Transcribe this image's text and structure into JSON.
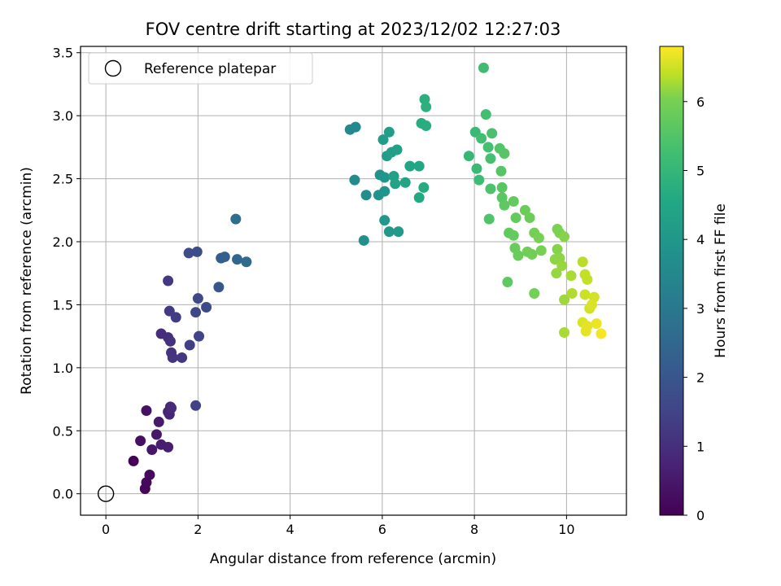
{
  "chart_data": {
    "type": "scatter",
    "title": "FOV centre drift starting at 2023/12/02 12:27:03",
    "xlabel": "Angular distance from reference (arcmin)",
    "ylabel": "Rotation from reference (arcmin)",
    "xlim": [
      -0.55,
      11.3
    ],
    "ylim": [
      -0.17,
      3.55
    ],
    "xticks": [
      0,
      2,
      4,
      6,
      8,
      10
    ],
    "yticks": [
      0.0,
      0.5,
      1.0,
      1.5,
      2.0,
      2.5,
      3.0,
      3.5
    ],
    "grid": true,
    "legend": {
      "position": "upper-left",
      "entries": [
        "Reference platepar"
      ]
    },
    "reference_point": {
      "x": 0.0,
      "y": 0.0
    },
    "colorbar": {
      "label": "Hours from first FF file",
      "colormap": "viridis",
      "range": [
        0,
        6.8
      ],
      "ticks": [
        0,
        1,
        2,
        3,
        4,
        5,
        6
      ]
    },
    "points": [
      {
        "x": 0.6,
        "y": 0.26,
        "c": 0.05
      },
      {
        "x": 0.85,
        "y": 0.04,
        "c": 0.1
      },
      {
        "x": 0.88,
        "y": 0.09,
        "c": 0.15
      },
      {
        "x": 0.95,
        "y": 0.15,
        "c": 0.2
      },
      {
        "x": 0.75,
        "y": 0.42,
        "c": 0.3
      },
      {
        "x": 0.88,
        "y": 0.66,
        "c": 0.35
      },
      {
        "x": 1.0,
        "y": 0.35,
        "c": 0.45
      },
      {
        "x": 1.1,
        "y": 0.47,
        "c": 0.5
      },
      {
        "x": 1.15,
        "y": 0.57,
        "c": 0.55
      },
      {
        "x": 1.2,
        "y": 0.39,
        "c": 0.6
      },
      {
        "x": 1.35,
        "y": 0.37,
        "c": 0.65
      },
      {
        "x": 1.35,
        "y": 0.65,
        "c": 0.75
      },
      {
        "x": 1.38,
        "y": 0.63,
        "c": 0.8
      },
      {
        "x": 1.4,
        "y": 0.69,
        "c": 0.85
      },
      {
        "x": 1.42,
        "y": 0.68,
        "c": 0.9
      },
      {
        "x": 1.2,
        "y": 1.27,
        "c": 0.95
      },
      {
        "x": 1.35,
        "y": 1.24,
        "c": 1.0
      },
      {
        "x": 1.4,
        "y": 1.21,
        "c": 1.05
      },
      {
        "x": 1.42,
        "y": 1.12,
        "c": 1.1
      },
      {
        "x": 1.45,
        "y": 1.08,
        "c": 1.15
      },
      {
        "x": 1.65,
        "y": 1.08,
        "c": 1.2
      },
      {
        "x": 1.35,
        "y": 1.69,
        "c": 1.25
      },
      {
        "x": 1.38,
        "y": 1.45,
        "c": 1.3
      },
      {
        "x": 1.52,
        "y": 1.4,
        "c": 1.35
      },
      {
        "x": 1.82,
        "y": 1.18,
        "c": 1.4
      },
      {
        "x": 1.95,
        "y": 0.7,
        "c": 1.45
      },
      {
        "x": 2.02,
        "y": 1.25,
        "c": 1.5
      },
      {
        "x": 1.95,
        "y": 1.44,
        "c": 1.6
      },
      {
        "x": 2.0,
        "y": 1.55,
        "c": 1.65
      },
      {
        "x": 2.18,
        "y": 1.48,
        "c": 1.7
      },
      {
        "x": 1.8,
        "y": 1.91,
        "c": 1.75
      },
      {
        "x": 1.98,
        "y": 1.92,
        "c": 1.8
      },
      {
        "x": 2.45,
        "y": 1.64,
        "c": 2.0
      },
      {
        "x": 2.5,
        "y": 1.87,
        "c": 2.2
      },
      {
        "x": 2.58,
        "y": 1.88,
        "c": 2.3
      },
      {
        "x": 2.85,
        "y": 1.86,
        "c": 2.5
      },
      {
        "x": 3.05,
        "y": 1.84,
        "c": 2.6
      },
      {
        "x": 2.82,
        "y": 2.18,
        "c": 2.7
      },
      {
        "x": 5.3,
        "y": 2.89,
        "c": 3.5
      },
      {
        "x": 5.42,
        "y": 2.91,
        "c": 3.55
      },
      {
        "x": 5.4,
        "y": 2.49,
        "c": 3.6
      },
      {
        "x": 5.65,
        "y": 2.37,
        "c": 3.7
      },
      {
        "x": 5.6,
        "y": 2.01,
        "c": 3.75
      },
      {
        "x": 5.92,
        "y": 2.37,
        "c": 3.8
      },
      {
        "x": 5.95,
        "y": 2.53,
        "c": 3.85
      },
      {
        "x": 6.05,
        "y": 2.4,
        "c": 3.9
      },
      {
        "x": 6.05,
        "y": 2.51,
        "c": 3.95
      },
      {
        "x": 6.05,
        "y": 2.17,
        "c": 4.0
      },
      {
        "x": 6.15,
        "y": 2.08,
        "c": 4.05
      },
      {
        "x": 6.35,
        "y": 2.08,
        "c": 4.1
      },
      {
        "x": 6.02,
        "y": 2.81,
        "c": 4.15
      },
      {
        "x": 6.15,
        "y": 2.87,
        "c": 4.2
      },
      {
        "x": 6.1,
        "y": 2.68,
        "c": 4.2
      },
      {
        "x": 6.2,
        "y": 2.71,
        "c": 4.25
      },
      {
        "x": 6.32,
        "y": 2.73,
        "c": 4.3
      },
      {
        "x": 6.25,
        "y": 2.52,
        "c": 4.3
      },
      {
        "x": 6.28,
        "y": 2.46,
        "c": 4.35
      },
      {
        "x": 6.5,
        "y": 2.47,
        "c": 4.4
      },
      {
        "x": 6.6,
        "y": 2.6,
        "c": 4.45
      },
      {
        "x": 6.8,
        "y": 2.6,
        "c": 4.5
      },
      {
        "x": 6.8,
        "y": 2.35,
        "c": 4.55
      },
      {
        "x": 6.9,
        "y": 2.43,
        "c": 4.6
      },
      {
        "x": 6.85,
        "y": 2.94,
        "c": 4.65
      },
      {
        "x": 6.95,
        "y": 2.92,
        "c": 4.7
      },
      {
        "x": 6.92,
        "y": 3.13,
        "c": 4.75
      },
      {
        "x": 6.95,
        "y": 3.07,
        "c": 4.8
      },
      {
        "x": 7.88,
        "y": 2.68,
        "c": 5.0
      },
      {
        "x": 8.02,
        "y": 2.87,
        "c": 5.05
      },
      {
        "x": 8.05,
        "y": 2.58,
        "c": 5.1
      },
      {
        "x": 8.1,
        "y": 2.49,
        "c": 5.15
      },
      {
        "x": 8.2,
        "y": 3.38,
        "c": 5.2
      },
      {
        "x": 8.25,
        "y": 3.01,
        "c": 5.25
      },
      {
        "x": 8.15,
        "y": 2.82,
        "c": 5.25
      },
      {
        "x": 8.3,
        "y": 2.75,
        "c": 5.3
      },
      {
        "x": 8.35,
        "y": 2.66,
        "c": 5.3
      },
      {
        "x": 8.38,
        "y": 2.86,
        "c": 5.35
      },
      {
        "x": 8.35,
        "y": 2.42,
        "c": 5.4
      },
      {
        "x": 8.32,
        "y": 2.18,
        "c": 5.45
      },
      {
        "x": 8.55,
        "y": 2.74,
        "c": 5.5
      },
      {
        "x": 8.65,
        "y": 2.7,
        "c": 5.55
      },
      {
        "x": 8.58,
        "y": 2.56,
        "c": 5.55
      },
      {
        "x": 8.6,
        "y": 2.43,
        "c": 5.6
      },
      {
        "x": 8.6,
        "y": 2.35,
        "c": 5.6
      },
      {
        "x": 8.65,
        "y": 2.29,
        "c": 5.65
      },
      {
        "x": 8.72,
        "y": 1.68,
        "c": 5.65
      },
      {
        "x": 8.75,
        "y": 2.07,
        "c": 5.7
      },
      {
        "x": 8.85,
        "y": 2.32,
        "c": 5.7
      },
      {
        "x": 8.85,
        "y": 2.05,
        "c": 5.75
      },
      {
        "x": 8.9,
        "y": 2.19,
        "c": 5.75
      },
      {
        "x": 8.88,
        "y": 1.95,
        "c": 5.8
      },
      {
        "x": 8.95,
        "y": 1.89,
        "c": 5.8
      },
      {
        "x": 9.1,
        "y": 2.25,
        "c": 5.85
      },
      {
        "x": 9.2,
        "y": 2.19,
        "c": 5.85
      },
      {
        "x": 9.15,
        "y": 1.92,
        "c": 5.9
      },
      {
        "x": 9.25,
        "y": 1.9,
        "c": 5.9
      },
      {
        "x": 9.3,
        "y": 2.07,
        "c": 5.95
      },
      {
        "x": 9.3,
        "y": 1.59,
        "c": 5.95
      },
      {
        "x": 9.4,
        "y": 2.03,
        "c": 6.0
      },
      {
        "x": 9.45,
        "y": 1.93,
        "c": 6.0
      },
      {
        "x": 9.8,
        "y": 2.1,
        "c": 6.05
      },
      {
        "x": 9.85,
        "y": 2.07,
        "c": 6.05
      },
      {
        "x": 9.95,
        "y": 2.04,
        "c": 6.1
      },
      {
        "x": 9.8,
        "y": 1.94,
        "c": 6.1
      },
      {
        "x": 9.75,
        "y": 1.86,
        "c": 6.15
      },
      {
        "x": 9.85,
        "y": 1.87,
        "c": 6.15
      },
      {
        "x": 9.9,
        "y": 1.81,
        "c": 6.2
      },
      {
        "x": 9.78,
        "y": 1.75,
        "c": 6.2
      },
      {
        "x": 9.95,
        "y": 1.54,
        "c": 6.25
      },
      {
        "x": 9.95,
        "y": 1.28,
        "c": 6.3
      },
      {
        "x": 10.1,
        "y": 1.73,
        "c": 6.3
      },
      {
        "x": 10.12,
        "y": 1.59,
        "c": 6.35
      },
      {
        "x": 10.35,
        "y": 1.84,
        "c": 6.4
      },
      {
        "x": 10.4,
        "y": 1.74,
        "c": 6.45
      },
      {
        "x": 10.45,
        "y": 1.7,
        "c": 6.45
      },
      {
        "x": 10.4,
        "y": 1.58,
        "c": 6.5
      },
      {
        "x": 10.5,
        "y": 1.47,
        "c": 6.55
      },
      {
        "x": 10.6,
        "y": 1.56,
        "c": 6.55
      },
      {
        "x": 10.55,
        "y": 1.5,
        "c": 6.6
      },
      {
        "x": 10.35,
        "y": 1.36,
        "c": 6.6
      },
      {
        "x": 10.45,
        "y": 1.33,
        "c": 6.65
      },
      {
        "x": 10.42,
        "y": 1.29,
        "c": 6.65
      },
      {
        "x": 10.65,
        "y": 1.35,
        "c": 6.7
      },
      {
        "x": 10.75,
        "y": 1.27,
        "c": 6.75
      }
    ]
  }
}
